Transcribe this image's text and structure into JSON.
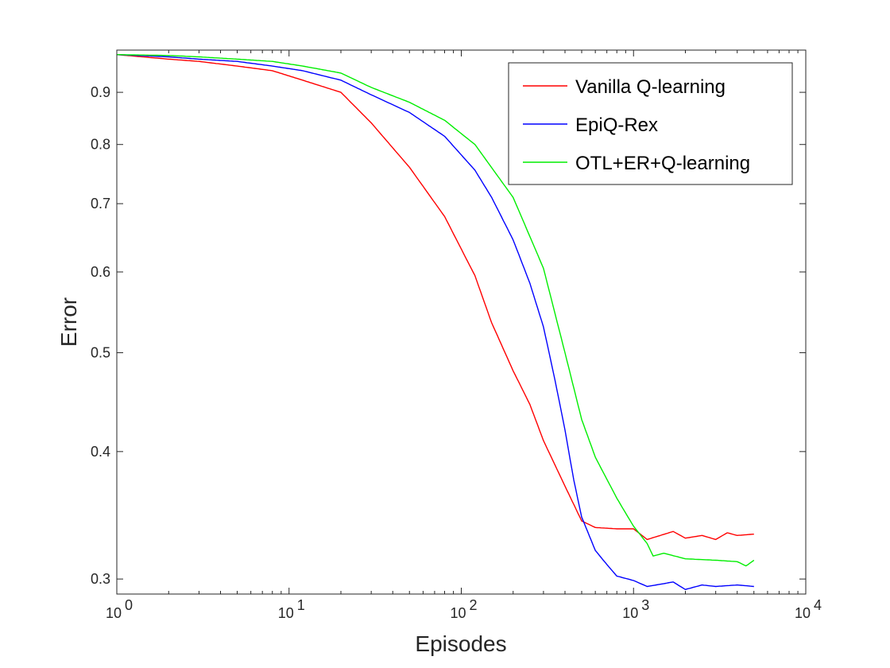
{
  "chart_data": {
    "type": "line",
    "xlabel": "Episodes",
    "ylabel": "Error",
    "x_scale": "log",
    "y_scale": "log",
    "xlim": [
      1,
      10000
    ],
    "ylim": [
      0.29,
      0.99
    ],
    "x_ticks": [
      {
        "value": 1,
        "base": "10",
        "exp": "0"
      },
      {
        "value": 10,
        "base": "10",
        "exp": "1"
      },
      {
        "value": 100,
        "base": "10",
        "exp": "2"
      },
      {
        "value": 1000,
        "base": "10",
        "exp": "3"
      },
      {
        "value": 10000,
        "base": "10",
        "exp": "4"
      }
    ],
    "y_ticks": [
      {
        "value": 0.3,
        "label": "0.3"
      },
      {
        "value": 0.4,
        "label": "0.4"
      },
      {
        "value": 0.5,
        "label": "0.5"
      },
      {
        "value": 0.6,
        "label": "0.6"
      },
      {
        "value": 0.7,
        "label": "0.7"
      },
      {
        "value": 0.8,
        "label": "0.8"
      },
      {
        "value": 0.9,
        "label": "0.9"
      }
    ],
    "grid": false,
    "legend_position": "top-right",
    "series": [
      {
        "name": "Vanilla Q-learning",
        "color": "#ff0000",
        "x": [
          1,
          2,
          3,
          5,
          8,
          12,
          20,
          30,
          50,
          80,
          120,
          150,
          200,
          250,
          300,
          400,
          500,
          600,
          800,
          1000,
          1200,
          1700,
          2000,
          2500,
          3000,
          3500,
          4000,
          5000
        ],
        "y": [
          0.98,
          0.97,
          0.965,
          0.955,
          0.945,
          0.925,
          0.9,
          0.84,
          0.76,
          0.68,
          0.595,
          0.535,
          0.48,
          0.445,
          0.41,
          0.37,
          0.342,
          0.337,
          0.336,
          0.336,
          0.328,
          0.334,
          0.329,
          0.331,
          0.328,
          0.333,
          0.331,
          0.332
        ]
      },
      {
        "name": "EpiQ-Rex",
        "color": "#0000ff",
        "x": [
          1,
          2,
          3,
          5,
          8,
          12,
          20,
          30,
          50,
          80,
          120,
          150,
          200,
          250,
          300,
          350,
          400,
          450,
          500,
          600,
          700,
          800,
          1000,
          1200,
          1700,
          2000,
          2500,
          3000,
          4000,
          5000
        ],
        "y": [
          0.98,
          0.975,
          0.97,
          0.965,
          0.955,
          0.945,
          0.925,
          0.895,
          0.86,
          0.815,
          0.755,
          0.71,
          0.645,
          0.585,
          0.53,
          0.47,
          0.42,
          0.375,
          0.345,
          0.32,
          0.31,
          0.302,
          0.299,
          0.295,
          0.298,
          0.293,
          0.296,
          0.295,
          0.296,
          0.295
        ]
      },
      {
        "name": "OTL+ER+Q-learning",
        "color": "#00ee00",
        "x": [
          1,
          2,
          3,
          5,
          8,
          12,
          20,
          30,
          50,
          80,
          120,
          200,
          300,
          400,
          500,
          600,
          800,
          1000,
          1200,
          1300,
          1500,
          2000,
          3000,
          4000,
          4500,
          5000
        ],
        "y": [
          0.98,
          0.978,
          0.975,
          0.97,
          0.965,
          0.955,
          0.94,
          0.91,
          0.88,
          0.845,
          0.8,
          0.71,
          0.605,
          0.5,
          0.43,
          0.395,
          0.36,
          0.338,
          0.325,
          0.316,
          0.318,
          0.314,
          0.313,
          0.312,
          0.309,
          0.313
        ]
      }
    ]
  }
}
